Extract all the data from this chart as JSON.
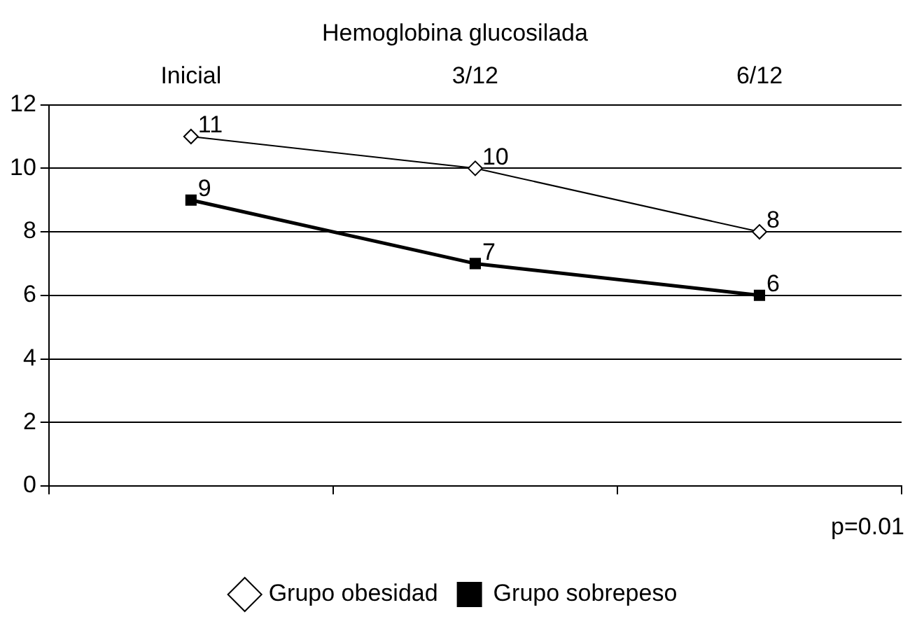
{
  "chart_data": {
    "type": "line",
    "title": "Hemoglobina glucosilada",
    "categories": [
      "Inicial",
      "3/12",
      "6/12"
    ],
    "series": [
      {
        "name": "Grupo obesidad",
        "color": "#000000",
        "values": [
          11,
          10,
          8
        ],
        "marker": "diamond"
      },
      {
        "name": "Grupo sobrepeso",
        "color": "#000000",
        "values": [
          9,
          7,
          6
        ],
        "marker": "square"
      }
    ],
    "ylim": [
      0,
      12
    ],
    "yticks": [
      0,
      2,
      4,
      6,
      8,
      10,
      12
    ],
    "grid": "y",
    "legend": "bottom",
    "data_labels": true,
    "annotations": [
      "p=0.01"
    ]
  }
}
